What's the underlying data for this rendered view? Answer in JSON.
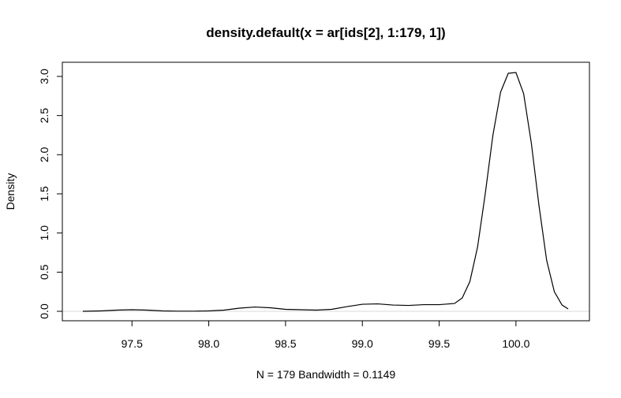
{
  "chart_data": {
    "type": "line",
    "title": "density.default(x = ar[ids[2], 1:179, 1])",
    "xlabel": "N = 179   Bandwidth = 0.1149",
    "ylabel": "Density",
    "xlim": [
      97.17,
      100.35
    ],
    "ylim": [
      0,
      3.06
    ],
    "x_ticks": [
      "97.5",
      "98.0",
      "98.5",
      "99.0",
      "99.5",
      "100.0"
    ],
    "x_tick_values": [
      97.5,
      98.0,
      98.5,
      99.0,
      99.5,
      100.0
    ],
    "y_ticks": [
      "0.0",
      "0.5",
      "1.0",
      "1.5",
      "2.0",
      "2.5",
      "3.0"
    ],
    "y_tick_values": [
      0.0,
      0.5,
      1.0,
      1.5,
      2.0,
      2.5,
      3.0
    ],
    "grid": false,
    "zero_line": true,
    "series": [
      {
        "x": [
          97.18,
          97.3,
          97.4,
          97.5,
          97.6,
          97.7,
          97.8,
          97.9,
          98.0,
          98.1,
          98.2,
          98.3,
          98.4,
          98.5,
          98.6,
          98.7,
          98.8,
          98.9,
          99.0,
          99.1,
          99.2,
          99.3,
          99.4,
          99.5,
          99.6,
          99.65,
          99.7,
          99.75,
          99.8,
          99.85,
          99.9,
          99.95,
          100.0,
          100.05,
          100.1,
          100.15,
          100.2,
          100.25,
          100.3,
          100.34
        ],
        "y": [
          0.0,
          0.005,
          0.015,
          0.02,
          0.015,
          0.005,
          0.002,
          0.002,
          0.005,
          0.015,
          0.04,
          0.055,
          0.045,
          0.025,
          0.02,
          0.015,
          0.025,
          0.06,
          0.09,
          0.095,
          0.08,
          0.075,
          0.085,
          0.085,
          0.1,
          0.17,
          0.38,
          0.82,
          1.5,
          2.25,
          2.8,
          3.04,
          3.05,
          2.78,
          2.15,
          1.35,
          0.65,
          0.25,
          0.08,
          0.03
        ]
      }
    ]
  }
}
